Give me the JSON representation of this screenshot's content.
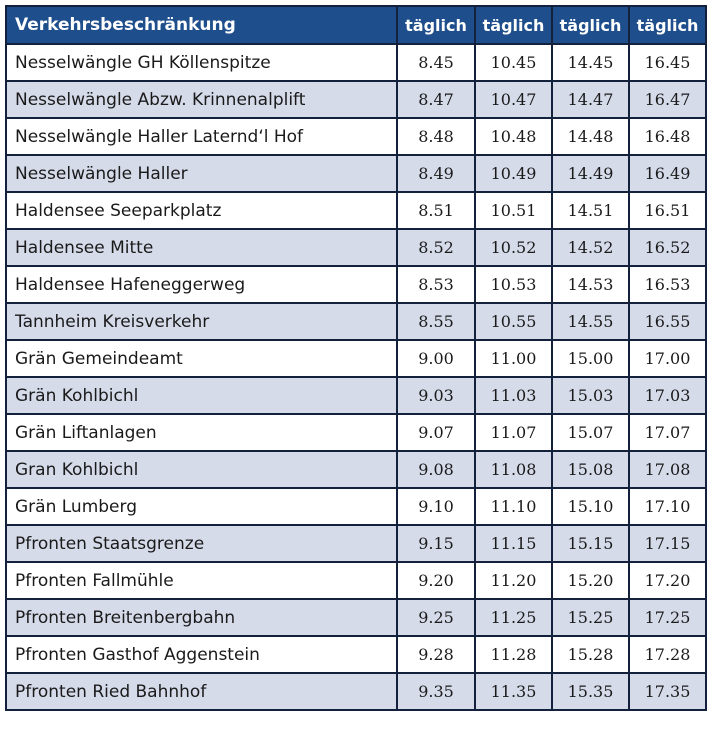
{
  "table": {
    "header": {
      "stop": "Verkehrsbeschränkung",
      "times": [
        "täglich",
        "täglich",
        "täglich",
        "täglich"
      ]
    },
    "rows": [
      {
        "stop": "Nesselwängle GH Köllenspitze",
        "times": [
          "8.45",
          "10.45",
          "14.45",
          "16.45"
        ]
      },
      {
        "stop": "Nesselwängle Abzw. Krinnenalplift",
        "times": [
          "8.47",
          "10.47",
          "14.47",
          "16.47"
        ]
      },
      {
        "stop": "Nesselwängle Haller Laternd‘l Hof",
        "times": [
          "8.48",
          "10.48",
          "14.48",
          "16.48"
        ]
      },
      {
        "stop": "Nesselwängle Haller",
        "times": [
          "8.49",
          "10.49",
          "14.49",
          "16.49"
        ]
      },
      {
        "stop": "Haldensee Seeparkplatz",
        "times": [
          "8.51",
          "10.51",
          "14.51",
          "16.51"
        ]
      },
      {
        "stop": "Haldensee Mitte",
        "times": [
          "8.52",
          "10.52",
          "14.52",
          "16.52"
        ]
      },
      {
        "stop": "Haldensee Hafeneggerweg",
        "times": [
          "8.53",
          "10.53",
          "14.53",
          "16.53"
        ]
      },
      {
        "stop": "Tannheim Kreisverkehr",
        "times": [
          "8.55",
          "10.55",
          "14.55",
          "16.55"
        ]
      },
      {
        "stop": "Grän Gemeindeamt",
        "times": [
          "9.00",
          "11.00",
          "15.00",
          "17.00"
        ]
      },
      {
        "stop": "Grän Kohlbichl",
        "times": [
          "9.03",
          "11.03",
          "15.03",
          "17.03"
        ]
      },
      {
        "stop": "Grän Liftanlagen",
        "times": [
          "9.07",
          "11.07",
          "15.07",
          "17.07"
        ]
      },
      {
        "stop": "Gran Kohlbichl",
        "times": [
          "9.08",
          "11.08",
          "15.08",
          "17.08"
        ]
      },
      {
        "stop": "Grän Lumberg",
        "times": [
          "9.10",
          "11.10",
          "15.10",
          "17.10"
        ]
      },
      {
        "stop": "Pfronten Staatsgrenze",
        "times": [
          "9.15",
          "11.15",
          "15.15",
          "17.15"
        ]
      },
      {
        "stop": "Pfronten Fallmühle",
        "times": [
          "9.20",
          "11.20",
          "15.20",
          "17.20"
        ]
      },
      {
        "stop": "Pfronten Breitenbergbahn",
        "times": [
          "9.25",
          "11.25",
          "15.25",
          "17.25"
        ]
      },
      {
        "stop": "Pfronten Gasthof Aggenstein",
        "times": [
          "9.28",
          "11.28",
          "15.28",
          "17.28"
        ]
      },
      {
        "stop": "Pfronten Ried Bahnhof",
        "times": [
          "9.35",
          "11.35",
          "15.35",
          "17.35"
        ]
      }
    ]
  },
  "colors": {
    "header_bg": "#1f4e8c",
    "header_text": "#ffffff",
    "alt_row_bg": "#d6dbea",
    "border": "#14213d"
  }
}
